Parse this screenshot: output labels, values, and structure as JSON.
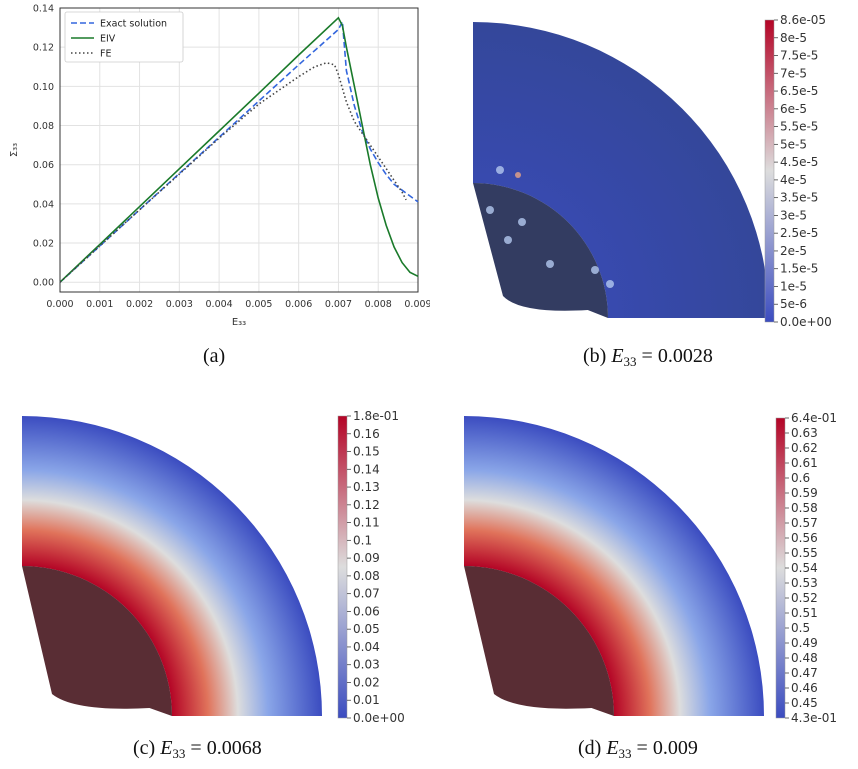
{
  "figure": {
    "captions": {
      "a": "(a)",
      "b_prefix": "(b) ",
      "b_var": "E",
      "b_sub": "33",
      "b_val": " = 0.0028",
      "c_prefix": "(c) ",
      "c_var": "E",
      "c_sub": "33",
      "c_val": " = 0.0068",
      "d_prefix": "(d) ",
      "d_var": "E",
      "d_sub": "33",
      "d_val": " = 0.009"
    },
    "colormaps": {
      "b": [
        "8.6e-05",
        "8e-5",
        "7.5e-5",
        "7e-5",
        "6.5e-5",
        "6e-5",
        "5.5e-5",
        "5e-5",
        "4.5e-5",
        "4e-5",
        "3.5e-5",
        "3e-5",
        "2.5e-5",
        "2e-5",
        "1.5e-5",
        "1e-5",
        "5e-6",
        "0.0e+00"
      ],
      "c": [
        "1.8e-01",
        "0.16",
        "0.15",
        "0.14",
        "0.13",
        "0.12",
        "0.11",
        "0.1",
        "0.09",
        "0.08",
        "0.07",
        "0.06",
        "0.05",
        "0.04",
        "0.03",
        "0.02",
        "0.01",
        "0.0e+00"
      ],
      "d": [
        "6.4e-01",
        "0.63",
        "0.62",
        "0.61",
        "0.6",
        "0.59",
        "0.58",
        "0.57",
        "0.56",
        "0.55",
        "0.54",
        "0.53",
        "0.52",
        "0.51",
        "0.5",
        "0.49",
        "0.48",
        "0.47",
        "0.46",
        "0.45",
        "4.3e-01"
      ]
    },
    "colors": {
      "cold": "#3b4cc0",
      "neutral": "#dddddd",
      "hot": "#b40426",
      "dark": "#4a0a10"
    }
  },
  "chart_data": {
    "type": "line",
    "xlabel": "E₃₃",
    "ylabel": "Σ₃₃",
    "xlim": [
      0,
      0.009
    ],
    "ylim": [
      -0.005,
      0.14
    ],
    "x_ticks": [
      "0.000",
      "0.001",
      "0.002",
      "0.003",
      "0.004",
      "0.005",
      "0.006",
      "0.007",
      "0.008",
      "0.009"
    ],
    "y_ticks": [
      "0.00",
      "0.02",
      "0.04",
      "0.06",
      "0.08",
      "0.10",
      "0.12",
      "0.14"
    ],
    "grid": true,
    "legend_position": "top-left",
    "series": [
      {
        "name": "Exact solution",
        "color": "#3366dd",
        "style": "dashed",
        "points": [
          [
            0,
            0
          ],
          [
            0.001,
            0.0185
          ],
          [
            0.002,
            0.037
          ],
          [
            0.003,
            0.0555
          ],
          [
            0.004,
            0.074
          ],
          [
            0.005,
            0.0925
          ],
          [
            0.006,
            0.111
          ],
          [
            0.007,
            0.129
          ],
          [
            0.0071,
            0.133
          ],
          [
            0.0072,
            0.108
          ],
          [
            0.0074,
            0.09
          ],
          [
            0.0076,
            0.077
          ],
          [
            0.0078,
            0.068
          ],
          [
            0.008,
            0.061
          ],
          [
            0.0082,
            0.055
          ],
          [
            0.0084,
            0.05
          ],
          [
            0.0086,
            0.047
          ],
          [
            0.0088,
            0.044
          ],
          [
            0.009,
            0.041
          ]
        ]
      },
      {
        "name": "EIV",
        "color": "#1a7a2a",
        "style": "solid",
        "points": [
          [
            0,
            0
          ],
          [
            0.001,
            0.0193
          ],
          [
            0.002,
            0.0386
          ],
          [
            0.003,
            0.0579
          ],
          [
            0.004,
            0.0772
          ],
          [
            0.005,
            0.0965
          ],
          [
            0.006,
            0.116
          ],
          [
            0.007,
            0.135
          ],
          [
            0.0071,
            0.131
          ],
          [
            0.0072,
            0.12
          ],
          [
            0.0074,
            0.1
          ],
          [
            0.0076,
            0.08
          ],
          [
            0.0078,
            0.06
          ],
          [
            0.008,
            0.043
          ],
          [
            0.0082,
            0.029
          ],
          [
            0.0084,
            0.018
          ],
          [
            0.0086,
            0.01
          ],
          [
            0.0088,
            0.005
          ],
          [
            0.009,
            0.003
          ]
        ]
      },
      {
        "name": "FE",
        "color": "#444444",
        "style": "dotted",
        "points": [
          [
            0,
            0
          ],
          [
            0.001,
            0.0185
          ],
          [
            0.002,
            0.037
          ],
          [
            0.003,
            0.0552
          ],
          [
            0.004,
            0.0735
          ],
          [
            0.005,
            0.091
          ],
          [
            0.0055,
            0.098
          ],
          [
            0.006,
            0.105
          ],
          [
            0.0064,
            0.11
          ],
          [
            0.0067,
            0.112
          ],
          [
            0.0069,
            0.111
          ],
          [
            0.007,
            0.106
          ],
          [
            0.0072,
            0.092
          ],
          [
            0.0074,
            0.082
          ],
          [
            0.0076,
            0.076
          ],
          [
            0.0078,
            0.07
          ],
          [
            0.008,
            0.064
          ],
          [
            0.0082,
            0.058
          ],
          [
            0.0084,
            0.052
          ],
          [
            0.0086,
            0.046
          ],
          [
            0.0087,
            0.042
          ]
        ]
      }
    ]
  }
}
